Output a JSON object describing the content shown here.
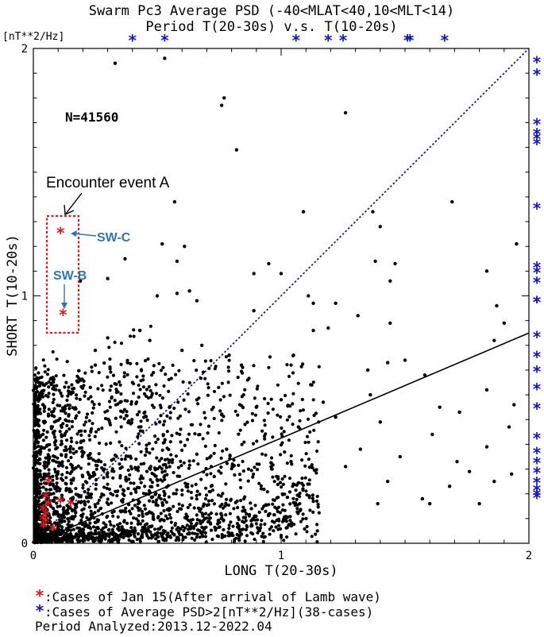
{
  "chart_data": {
    "type": "scatter",
    "title": "Swarm Pc3 Average PSD (-40<MLAT<40,10<MLT<14)",
    "subtitle": "Period T(20-30s) v.s. T(10-20s)",
    "unit_label": "[nT**2/Hz]",
    "xlabel": "LONG T(20-30s)",
    "ylabel": "SHORT T(10-20s)",
    "xlim": [
      0,
      2
    ],
    "ylim": [
      0,
      2
    ],
    "xticks": [
      "0",
      "1",
      "2"
    ],
    "yticks": [
      "0",
      "1",
      "2"
    ],
    "n_label": "N=41560",
    "diagonal_line": {
      "x": [
        0,
        2
      ],
      "y": [
        0,
        2
      ],
      "color": "#1a1aa6",
      "style": "dotted"
    },
    "fit_line": {
      "x": [
        0,
        2
      ],
      "y": [
        0,
        0.85
      ],
      "color": "#000000"
    },
    "black_points": [
      [
        0.33,
        1.94
      ],
      [
        0.53,
        1.96
      ],
      [
        0.77,
        1.8
      ],
      [
        0.76,
        1.77
      ],
      [
        1.26,
        1.74
      ],
      [
        0.82,
        1.59
      ],
      [
        0.57,
        1.38
      ],
      [
        1.09,
        1.34
      ],
      [
        1.69,
        1.38
      ],
      [
        1.37,
        1.34
      ],
      [
        1.4,
        1.28
      ],
      [
        0.52,
        1.21
      ],
      [
        0.61,
        1.2
      ],
      [
        0.37,
        1.15
      ],
      [
        0.58,
        1.14
      ],
      [
        0.95,
        1.13
      ],
      [
        1.0,
        1.09
      ],
      [
        1.38,
        1.14
      ],
      [
        1.46,
        1.13
      ],
      [
        0.89,
        1.09
      ],
      [
        0.19,
        1.06
      ],
      [
        0.3,
        1.07
      ],
      [
        0.5,
        1.0
      ],
      [
        0.58,
        1.01
      ],
      [
        0.63,
        1.02
      ],
      [
        0.66,
        0.98
      ],
      [
        0.89,
        0.94
      ],
      [
        1.11,
        1.0
      ],
      [
        1.13,
        0.97
      ],
      [
        1.44,
        1.06
      ],
      [
        1.95,
        1.21
      ],
      [
        1.83,
        1.1
      ],
      [
        1.13,
        0.86
      ],
      [
        1.19,
        0.87
      ],
      [
        1.22,
        0.97
      ],
      [
        1.31,
        0.92
      ],
      [
        1.44,
        0.89
      ],
      [
        1.87,
        0.96
      ],
      [
        1.9,
        0.89
      ],
      [
        0.25,
        0.78
      ],
      [
        0.3,
        0.83
      ],
      [
        0.25,
        0.72
      ],
      [
        0.38,
        0.73
      ],
      [
        0.4,
        0.65
      ],
      [
        0.43,
        0.86
      ],
      [
        0.47,
        0.82
      ],
      [
        0.6,
        0.78
      ],
      [
        0.68,
        0.8
      ],
      [
        0.79,
        0.76
      ],
      [
        0.84,
        0.72
      ],
      [
        1.05,
        0.76
      ],
      [
        1.35,
        0.7
      ],
      [
        1.43,
        0.73
      ],
      [
        1.5,
        0.74
      ],
      [
        1.58,
        0.68
      ],
      [
        1.83,
        0.62
      ],
      [
        1.86,
        0.82
      ],
      [
        0.16,
        0.61
      ],
      [
        0.23,
        0.63
      ],
      [
        0.35,
        0.57
      ],
      [
        0.42,
        0.52
      ],
      [
        0.51,
        0.49
      ],
      [
        0.55,
        0.55
      ],
      [
        0.66,
        0.58
      ],
      [
        0.76,
        0.52
      ],
      [
        0.9,
        0.55
      ],
      [
        1.0,
        0.58
      ],
      [
        1.07,
        0.47
      ],
      [
        1.17,
        0.57
      ],
      [
        1.22,
        0.51
      ],
      [
        1.36,
        0.6
      ],
      [
        1.4,
        0.49
      ],
      [
        1.64,
        0.55
      ],
      [
        1.72,
        0.53
      ],
      [
        1.92,
        0.47
      ],
      [
        1.94,
        0.56
      ],
      [
        1.61,
        0.44
      ],
      [
        1.83,
        0.39
      ],
      [
        1.76,
        0.29
      ],
      [
        1.86,
        0.25
      ],
      [
        1.93,
        0.28
      ],
      [
        1.68,
        0.23
      ],
      [
        1.57,
        0.18
      ],
      [
        1.43,
        0.25
      ],
      [
        1.26,
        0.31
      ],
      [
        1.13,
        0.17
      ],
      [
        0.92,
        0.22
      ],
      [
        0.88,
        0.14
      ],
      [
        0.73,
        0.27
      ],
      [
        0.66,
        0.36
      ],
      [
        0.55,
        0.31
      ],
      [
        1.04,
        0.33
      ],
      [
        1.32,
        0.38
      ],
      [
        1.48,
        0.35
      ],
      [
        1.71,
        0.33
      ],
      [
        0.78,
        0.38
      ],
      [
        1.39,
        0.16
      ],
      [
        1.6,
        0.16
      ],
      [
        1.8,
        0.16
      ]
    ],
    "red_points": [
      [
        0.11,
        1.26
      ],
      [
        0.12,
        0.93
      ],
      [
        0.06,
        0.25
      ],
      [
        0.05,
        0.19
      ],
      [
        0.06,
        0.16
      ],
      [
        0.04,
        0.14
      ],
      [
        0.05,
        0.12
      ],
      [
        0.04,
        0.1
      ],
      [
        0.05,
        0.09
      ],
      [
        0.08,
        0.06
      ],
      [
        0.11,
        0.17
      ],
      [
        0.15,
        0.16
      ],
      [
        0.04,
        0.07
      ]
    ],
    "blue_top_x": [
      0.4,
      0.53,
      1.06,
      1.19,
      1.25,
      1.51,
      1.52,
      1.66
    ],
    "blue_right_y": [
      1.95,
      1.9,
      1.7,
      1.66,
      1.64,
      1.62,
      1.36,
      1.12,
      1.1,
      1.06,
      0.98,
      0.98,
      0.84,
      0.76,
      0.7,
      0.63,
      0.55,
      0.43,
      0.37,
      0.33,
      0.29,
      0.25,
      0.22,
      0.2,
      0.19
    ],
    "colors": {
      "black": "#000000",
      "red": "#e01a1a",
      "blue": "#1414d8",
      "annotation": "#2e75b6",
      "event_box": "#e01a1a"
    },
    "annotations": {
      "event": "Encounter event A",
      "swc": "SW-C",
      "swb": "SW-B"
    },
    "legend": {
      "red_star": "*",
      "red_text": ":Cases of Jan 15(After arrival of Lamb wave)",
      "blue_star": "*",
      "blue_text": ":Cases of Average PSD>2[nT**2/Hz](38-cases)",
      "period": "Period Analyzed:2013.12-2022.04"
    }
  }
}
